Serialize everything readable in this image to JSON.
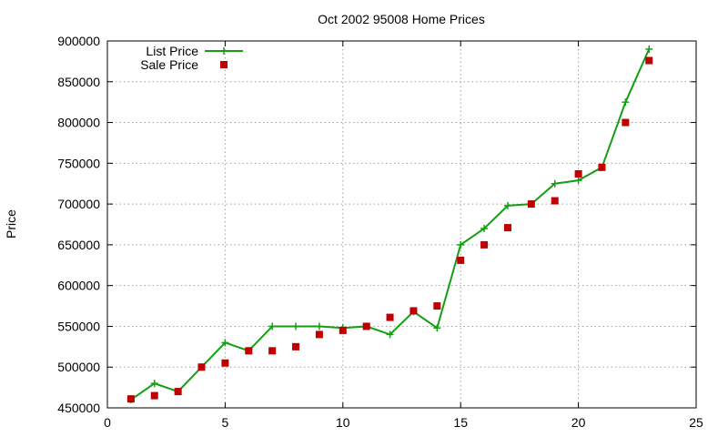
{
  "chart_data": {
    "type": "line",
    "title": "Oct 2002 95008 Home Prices",
    "xlabel": "",
    "ylabel": "Price",
    "xlim": [
      0,
      25
    ],
    "ylim": [
      450000,
      900000
    ],
    "xticks": [
      0,
      5,
      10,
      15,
      20,
      25
    ],
    "yticks": [
      450000,
      500000,
      550000,
      600000,
      650000,
      700000,
      750000,
      800000,
      850000,
      900000
    ],
    "grid": true,
    "legend_position": "top-left",
    "series": [
      {
        "name": "List Price",
        "style": "linespoints",
        "marker": "plus",
        "color": "#12a012",
        "x": [
          1,
          2,
          3,
          4,
          5,
          6,
          7,
          8,
          9,
          10,
          11,
          12,
          13,
          14,
          15,
          16,
          17,
          18,
          19,
          20,
          21,
          22,
          23
        ],
        "y": [
          460000,
          480000,
          470000,
          500000,
          530000,
          520000,
          550000,
          550000,
          550000,
          548000,
          550000,
          540000,
          568000,
          548000,
          650000,
          670000,
          698000,
          700000,
          725000,
          729000,
          745000,
          825000,
          890000
        ]
      },
      {
        "name": "Sale Price",
        "style": "points",
        "marker": "square",
        "color": "#c00000",
        "x": [
          1,
          2,
          3,
          4,
          5,
          6,
          7,
          8,
          9,
          10,
          11,
          12,
          13,
          14,
          15,
          16,
          17,
          18,
          19,
          20,
          21,
          22,
          23
        ],
        "y": [
          461000,
          465000,
          470000,
          500000,
          505000,
          520000,
          520000,
          525000,
          540000,
          545000,
          550000,
          561000,
          569000,
          575000,
          631000,
          650000,
          671000,
          700000,
          704000,
          737000,
          745000,
          800000,
          876000
        ]
      }
    ]
  }
}
